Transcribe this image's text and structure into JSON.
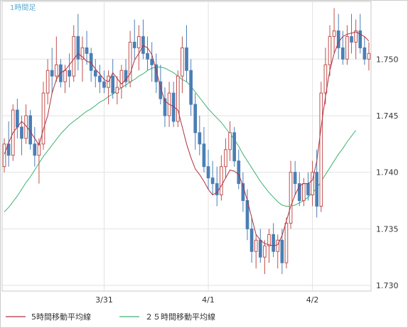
{
  "chart_data": {
    "type": "candlestick",
    "period_label": "1時間足",
    "y_ticks": [
      1.73,
      1.735,
      1.74,
      1.745,
      1.75
    ],
    "y_tick_labels": [
      "1.730",
      "1.735",
      "1.740",
      "1.745",
      "1.750"
    ],
    "ylim": [
      1.7295,
      1.7551
    ],
    "x_tick_labels": [
      {
        "label": "3/31",
        "bar": 23
      },
      {
        "label": "4/1",
        "bar": 47
      },
      {
        "label": "4/2",
        "bar": 71
      }
    ],
    "grid": true,
    "legend_position": "bottom-left",
    "colors": {
      "up": "#c0504d",
      "down": "#4a7fb5",
      "ma5": "#b03040",
      "ma25": "#3cb371",
      "grid": "#e2e2e2",
      "period_label": "#5aaad0"
    },
    "series": [
      {
        "name": "5時間移動平均線",
        "color": "#b03040",
        "values": [
          1.7416,
          1.7426,
          1.7435,
          1.744,
          1.7445,
          1.7441,
          1.7436,
          1.743,
          1.7424,
          1.7438,
          1.745,
          1.747,
          1.7482,
          1.7488,
          1.749,
          1.7495,
          1.75,
          1.7505,
          1.7502,
          1.7498,
          1.7497,
          1.7491,
          1.7487,
          1.7482,
          1.748,
          1.7488,
          1.7483,
          1.7478,
          1.7482,
          1.7487,
          1.7499,
          1.7505,
          1.7512,
          1.751,
          1.7504,
          1.749,
          1.7475,
          1.7463,
          1.746,
          1.7458,
          1.7455,
          1.744,
          1.7425,
          1.7413,
          1.7403,
          1.7398,
          1.7392,
          1.7385,
          1.738,
          1.7382,
          1.7388,
          1.7395,
          1.7402,
          1.7401,
          1.7398,
          1.7388,
          1.7375,
          1.736,
          1.7345,
          1.734,
          1.7337,
          1.7336,
          1.7335,
          1.7336,
          1.7344,
          1.7357,
          1.737,
          1.738,
          1.7388,
          1.739,
          1.739,
          1.7393,
          1.741,
          1.744,
          1.7467,
          1.749,
          1.7505,
          1.7515,
          1.752,
          1.7522,
          1.7523,
          1.7524,
          1.7522,
          1.752,
          1.7516
        ]
      },
      {
        "name": "２５時間移動平均線",
        "color": "#3cb371",
        "values": [
          1.7365,
          1.7369,
          1.7374,
          1.7379,
          1.7385,
          1.7391,
          1.7396,
          1.7402,
          1.7408,
          1.7414,
          1.7419,
          1.7424,
          1.7429,
          1.7434,
          1.7438,
          1.7442,
          1.7445,
          1.7448,
          1.7451,
          1.7454,
          1.7456,
          1.7459,
          1.7462,
          1.7464,
          1.7467,
          1.7469,
          1.7472,
          1.7475,
          1.7477,
          1.748,
          1.7482,
          1.7485,
          1.7487,
          1.749,
          1.7492,
          1.7493,
          1.7493,
          1.7492,
          1.749,
          1.7488,
          1.7485,
          1.7482,
          1.748,
          1.7476,
          1.7471,
          1.7466,
          1.7461,
          1.7456,
          1.7452,
          1.7448,
          1.7444,
          1.7439,
          1.7434,
          1.7429,
          1.7423,
          1.7416,
          1.741,
          1.7404,
          1.7398,
          1.7392,
          1.7387,
          1.7382,
          1.7378,
          1.7374,
          1.7371,
          1.737,
          1.737,
          1.7371,
          1.7373,
          1.7375,
          1.7378,
          1.7382,
          1.7386,
          1.7392,
          1.7398,
          1.7404,
          1.741,
          1.7416,
          1.7421,
          1.7427,
          1.7432,
          1.7437
        ]
      }
    ],
    "ohlc": [
      [
        1.7405,
        1.743,
        1.74,
        1.7425
      ],
      [
        1.7425,
        1.7445,
        1.7405,
        1.7415
      ],
      [
        1.7415,
        1.746,
        1.741,
        1.7455
      ],
      [
        1.7455,
        1.7465,
        1.743,
        1.744
      ],
      [
        1.744,
        1.745,
        1.7415,
        1.743
      ],
      [
        1.743,
        1.746,
        1.7425,
        1.745
      ],
      [
        1.745,
        1.7455,
        1.742,
        1.7425
      ],
      [
        1.7425,
        1.744,
        1.7405,
        1.7415
      ],
      [
        1.7415,
        1.743,
        1.739,
        1.7425
      ],
      [
        1.7425,
        1.748,
        1.742,
        1.747
      ],
      [
        1.747,
        1.75,
        1.746,
        1.749
      ],
      [
        1.749,
        1.751,
        1.747,
        1.7485
      ],
      [
        1.7485,
        1.752,
        1.748,
        1.7495
      ],
      [
        1.7495,
        1.75,
        1.7475,
        1.748
      ],
      [
        1.748,
        1.7495,
        1.747,
        1.749
      ],
      [
        1.749,
        1.7505,
        1.7475,
        1.7485
      ],
      [
        1.7485,
        1.753,
        1.748,
        1.752
      ],
      [
        1.752,
        1.754,
        1.749,
        1.75
      ],
      [
        1.75,
        1.752,
        1.748,
        1.751
      ],
      [
        1.751,
        1.7525,
        1.7495,
        1.7505
      ],
      [
        1.7505,
        1.751,
        1.748,
        1.749
      ],
      [
        1.749,
        1.75,
        1.7475,
        1.7485
      ],
      [
        1.7485,
        1.7495,
        1.747,
        1.748
      ],
      [
        1.748,
        1.749,
        1.747,
        1.7475
      ],
      [
        1.7475,
        1.749,
        1.746,
        1.7485
      ],
      [
        1.7485,
        1.75,
        1.7465,
        1.747
      ],
      [
        1.747,
        1.7485,
        1.746,
        1.7475
      ],
      [
        1.7475,
        1.7495,
        1.7465,
        1.749
      ],
      [
        1.749,
        1.75,
        1.7475,
        1.748
      ],
      [
        1.748,
        1.7525,
        1.7475,
        1.7515
      ],
      [
        1.7515,
        1.7535,
        1.75,
        1.751
      ],
      [
        1.751,
        1.753,
        1.749,
        1.752
      ],
      [
        1.752,
        1.7535,
        1.75,
        1.7505
      ],
      [
        1.7505,
        1.752,
        1.749,
        1.75
      ],
      [
        1.75,
        1.7515,
        1.748,
        1.7495
      ],
      [
        1.7495,
        1.7505,
        1.747,
        1.748
      ],
      [
        1.748,
        1.7495,
        1.746,
        1.7465
      ],
      [
        1.7465,
        1.7475,
        1.744,
        1.745
      ],
      [
        1.745,
        1.748,
        1.744,
        1.747
      ],
      [
        1.747,
        1.748,
        1.744,
        1.7445
      ],
      [
        1.7445,
        1.749,
        1.744,
        1.7485
      ],
      [
        1.7485,
        1.752,
        1.747,
        1.751
      ],
      [
        1.751,
        1.753,
        1.748,
        1.749
      ],
      [
        1.749,
        1.75,
        1.745,
        1.746
      ],
      [
        1.746,
        1.747,
        1.742,
        1.7435
      ],
      [
        1.7435,
        1.745,
        1.7415,
        1.7425
      ],
      [
        1.7425,
        1.744,
        1.74,
        1.7405
      ],
      [
        1.7405,
        1.742,
        1.7385,
        1.7395
      ],
      [
        1.7395,
        1.741,
        1.738,
        1.739
      ],
      [
        1.739,
        1.7405,
        1.737,
        1.738
      ],
      [
        1.738,
        1.7415,
        1.7375,
        1.7405
      ],
      [
        1.7405,
        1.743,
        1.7395,
        1.742
      ],
      [
        1.742,
        1.7445,
        1.741,
        1.7435
      ],
      [
        1.7435,
        1.744,
        1.7405,
        1.741
      ],
      [
        1.741,
        1.742,
        1.7385,
        1.739
      ],
      [
        1.739,
        1.74,
        1.7365,
        1.7375
      ],
      [
        1.7375,
        1.7385,
        1.734,
        1.735
      ],
      [
        1.735,
        1.736,
        1.732,
        1.733
      ],
      [
        1.733,
        1.7345,
        1.7315,
        1.734
      ],
      [
        1.734,
        1.735,
        1.732,
        1.7325
      ],
      [
        1.7325,
        1.734,
        1.731,
        1.7335
      ],
      [
        1.7335,
        1.735,
        1.732,
        1.7345
      ],
      [
        1.7345,
        1.7355,
        1.7325,
        1.733
      ],
      [
        1.733,
        1.7345,
        1.7315,
        1.734
      ],
      [
        1.734,
        1.735,
        1.731,
        1.732
      ],
      [
        1.732,
        1.736,
        1.7315,
        1.7355
      ],
      [
        1.7355,
        1.741,
        1.735,
        1.74
      ],
      [
        1.74,
        1.741,
        1.738,
        1.739
      ],
      [
        1.739,
        1.74,
        1.737,
        1.7375
      ],
      [
        1.7375,
        1.7395,
        1.737,
        1.739
      ],
      [
        1.739,
        1.74,
        1.7375,
        1.738
      ],
      [
        1.738,
        1.741,
        1.737,
        1.74
      ],
      [
        1.74,
        1.742,
        1.736,
        1.737
      ],
      [
        1.737,
        1.748,
        1.7365,
        1.747
      ],
      [
        1.747,
        1.751,
        1.746,
        1.7495
      ],
      [
        1.7495,
        1.753,
        1.7485,
        1.752
      ],
      [
        1.752,
        1.7545,
        1.7505,
        1.7525
      ],
      [
        1.7525,
        1.754,
        1.75,
        1.751
      ],
      [
        1.751,
        1.7525,
        1.7495,
        1.75
      ],
      [
        1.75,
        1.753,
        1.7495,
        1.752
      ],
      [
        1.752,
        1.754,
        1.7505,
        1.7515
      ],
      [
        1.7515,
        1.7535,
        1.75,
        1.7525
      ],
      [
        1.7525,
        1.754,
        1.7505,
        1.751
      ],
      [
        1.751,
        1.752,
        1.7495,
        1.75
      ],
      [
        1.75,
        1.7515,
        1.749,
        1.7505
      ]
    ]
  }
}
